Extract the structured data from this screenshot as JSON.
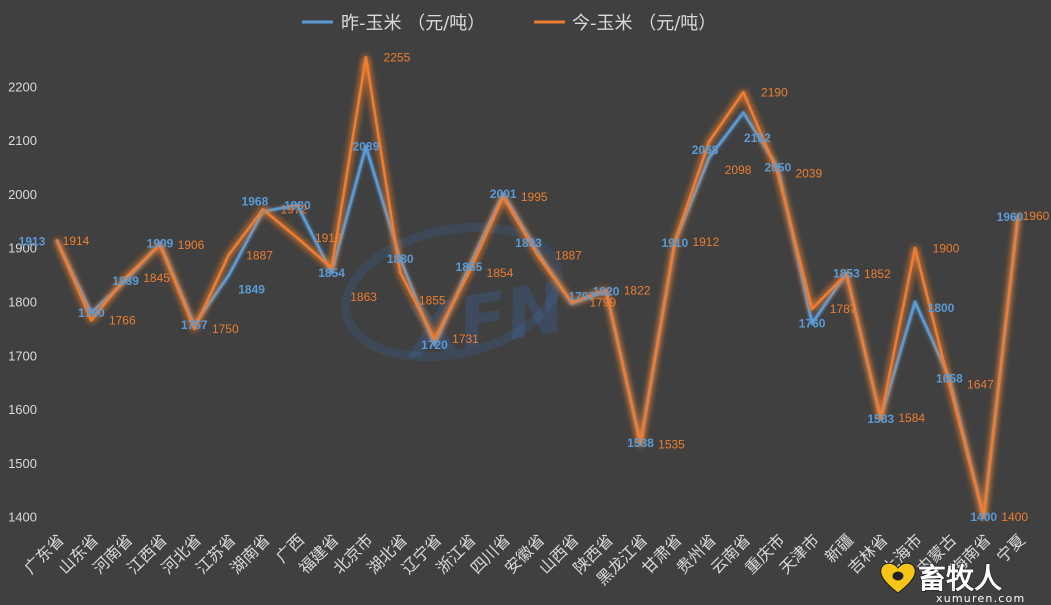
{
  "chart_data": {
    "type": "line",
    "categories": [
      "广东省",
      "山东省",
      "河南省",
      "江西省",
      "河北省",
      "江苏省",
      "湖南省",
      "广西",
      "福建省",
      "北京市",
      "湖北省",
      "辽宁省",
      "浙江省",
      "四川省",
      "安徽省",
      "山西省",
      "陕西省",
      "黑龙江省",
      "甘肃省",
      "贵州省",
      "云南省",
      "重庆市",
      "天津市",
      "新疆",
      "吉林省",
      "上海市",
      "内蒙古",
      "海南省",
      "宁夏"
    ],
    "series": [
      {
        "name": "昨-玉米 （元/吨）",
        "color": "#5b9bd5",
        "values": [
          1913,
          1780,
          1839,
          1909,
          1757,
          1849,
          1968,
          1980,
          1854,
          2089,
          1880,
          1720,
          1865,
          2001,
          1893,
          1797,
          1820,
          1538,
          1910,
          2068,
          2152,
          2050,
          1760,
          1853,
          1583,
          1800,
          1658,
          1400,
          1960
        ]
      },
      {
        "name": "今-玉米 （元/吨）",
        "color": "#ed7d31",
        "values": [
          1914,
          1766,
          1845,
          1906,
          1750,
          1887,
          1972,
          1919,
          1863,
          2255,
          1855,
          1731,
          1854,
          1995,
          1887,
          1799,
          1822,
          1535,
          1912,
          2098,
          2190,
          2039,
          1787,
          1852,
          1584,
          1900,
          1647,
          1400,
          1960
        ]
      }
    ],
    "ylim": [
      1400,
      2300
    ],
    "yticks": [
      1400,
      1500,
      1600,
      1700,
      1800,
      1900,
      2000,
      2100,
      2200
    ],
    "grid": false,
    "legend_position": "top",
    "data_labels": true,
    "background": "#404040"
  },
  "watermark": {
    "text": "XFN"
  },
  "logo": {
    "name": "畜牧人",
    "site": "xumuren.com",
    "accent": "#f5c518"
  }
}
